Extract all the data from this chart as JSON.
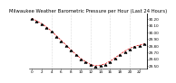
{
  "title": "Milwaukee Weather Barometric Pressure per Hour (Last 24 Hours)",
  "hours": [
    0,
    1,
    2,
    3,
    4,
    5,
    6,
    7,
    8,
    9,
    10,
    11,
    12,
    13,
    14,
    15,
    16,
    17,
    18,
    19,
    20,
    21,
    22,
    23
  ],
  "pressure": [
    30.21,
    30.17,
    30.13,
    30.08,
    30.02,
    29.95,
    29.88,
    29.81,
    29.74,
    29.67,
    29.61,
    29.56,
    29.52,
    29.5,
    29.51,
    29.53,
    29.57,
    29.62,
    29.67,
    29.72,
    29.76,
    29.79,
    29.81,
    29.83
  ],
  "line_color": "#dd0000",
  "marker_color": "#000000",
  "grid_color": "#bbbbbb",
  "bg_color": "#ffffff",
  "ylim_min": 29.46,
  "ylim_max": 30.28,
  "ytick_values": [
    29.5,
    29.6,
    29.7,
    29.8,
    29.9,
    30.0,
    30.1,
    30.2
  ],
  "grid_hours": [
    4,
    8,
    12,
    16,
    20
  ],
  "title_fontsize": 3.8,
  "tick_fontsize": 3.0
}
